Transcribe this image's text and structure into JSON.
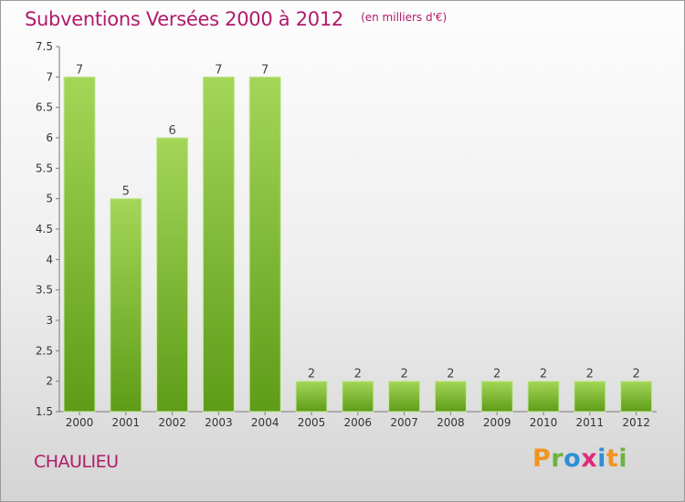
{
  "title": "Subventions Versées 2000 à 2012",
  "unit": "(en milliers d'€)",
  "commune": "CHAULIEU",
  "logo": "Proxiti",
  "colors": {
    "title": "#b01a6a",
    "bar_light": "#a4d658",
    "bar_dark": "#5e9c18"
  },
  "chart_data": {
    "type": "bar",
    "title": "Subventions Versées 2000 à 2012",
    "subtitle": "(en milliers d'€)",
    "categories": [
      "2000",
      "2001",
      "2002",
      "2003",
      "2004",
      "2005",
      "2006",
      "2007",
      "2008",
      "2009",
      "2010",
      "2011",
      "2012"
    ],
    "values": [
      7,
      5,
      6,
      7,
      7,
      2,
      2,
      2,
      2,
      2,
      2,
      2,
      2
    ],
    "ylim": [
      1.5,
      7.5
    ],
    "yticks": [
      "1.5",
      "2",
      "2.5",
      "3",
      "3.5",
      "4",
      "4.5",
      "5",
      "5.5",
      "6",
      "6.5",
      "7",
      "7.5"
    ],
    "grid": false,
    "legend": "none"
  }
}
